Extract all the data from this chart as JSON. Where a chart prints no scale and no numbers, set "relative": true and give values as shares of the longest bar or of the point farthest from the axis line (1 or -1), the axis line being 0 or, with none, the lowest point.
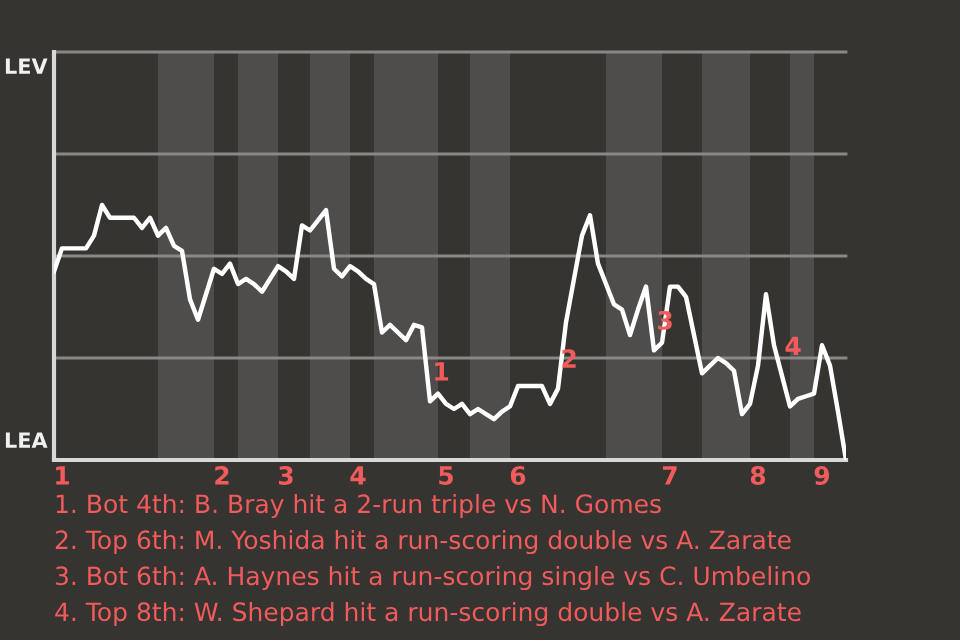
{
  "chart_data": {
    "type": "line",
    "relative": true,
    "categories": [
      null,
      "1",
      null,
      null,
      null,
      null,
      null,
      null,
      null,
      null,
      null,
      null,
      null,
      null,
      null,
      null,
      null,
      null,
      null,
      null,
      null,
      "2",
      null,
      null,
      null,
      null,
      null,
      null,
      null,
      "3",
      null,
      null,
      null,
      null,
      null,
      null,
      null,
      null,
      "4",
      null,
      null,
      null,
      null,
      null,
      null,
      null,
      null,
      null,
      null,
      "5",
      null,
      null,
      null,
      null,
      null,
      null,
      null,
      null,
      "6",
      null,
      null,
      null,
      null,
      null,
      null,
      null,
      null,
      null,
      null,
      null,
      null,
      null,
      null,
      null,
      null,
      null,
      null,
      "7",
      null,
      null,
      null,
      null,
      null,
      null,
      null,
      null,
      null,
      null,
      "8",
      null,
      null,
      null,
      null,
      null,
      null,
      null,
      "9",
      null,
      null,
      null
    ],
    "series": [
      {
        "color": "#ffffff",
        "values": [
          0.74,
          0.83,
          0.83,
          0.83,
          0.83,
          0.88,
          1.0,
          0.95,
          0.95,
          0.95,
          0.95,
          0.91,
          0.95,
          0.88,
          0.91,
          0.84,
          0.82,
          0.63,
          0.55,
          0.65,
          0.75,
          0.73,
          0.77,
          0.69,
          0.71,
          0.69,
          0.66,
          0.71,
          0.76,
          0.74,
          0.71,
          0.92,
          0.9,
          0.94,
          0.98,
          0.75,
          0.72,
          0.76,
          0.74,
          0.71,
          0.69,
          0.5,
          0.53,
          0.5,
          0.47,
          0.53,
          0.52,
          0.23,
          0.26,
          0.22,
          0.2,
          0.22,
          0.18,
          0.2,
          0.18,
          0.16,
          0.19,
          0.21,
          0.29,
          0.29,
          0.29,
          0.29,
          0.22,
          0.28,
          0.54,
          0.71,
          0.88,
          0.96,
          0.77,
          0.69,
          0.61,
          0.59,
          0.49,
          0.59,
          0.68,
          0.43,
          0.46,
          0.68,
          0.68,
          0.64,
          0.49,
          0.34,
          0.37,
          0.4,
          0.38,
          0.35,
          0.18,
          0.22,
          0.37,
          0.65,
          0.45,
          0.33,
          0.21,
          0.24,
          0.25,
          0.26,
          0.45,
          0.37,
          0.19,
          0
        ]
      }
    ],
    "ref_lines": [
      {
        "axis": "y",
        "value": 0.4,
        "color": "#8a8886"
      },
      {
        "axis": "y",
        "value": 0.8,
        "color": "#8a8886"
      },
      {
        "axis": "y",
        "value": 1.2,
        "color": "#8a8886"
      },
      {
        "axis": "y",
        "value": 1.6,
        "color": "#8a8886"
      }
    ],
    "annotations": [
      "LEV",
      "LEA",
      {
        "text": "1",
        "y": 0.23
      },
      {
        "text": "2",
        "y": 0.28
      },
      {
        "text": "3",
        "y": 0.43
      },
      {
        "text": "4",
        "y": 0.33
      },
      "1. Bot 4th: B. Bray hit a 2-run triple vs N. Gomes",
      "2. Top 6th: M. Yoshida hit a run-scoring double vs A. Zarate",
      "3. Bot 6th: A. Haynes hit a run-scoring single vs C. Umbelino",
      "4. Top 8th: W. Shepard hit a run-scoring double vs A. Zarate"
    ],
    "tick_labels": "x",
    "legend": false,
    "marker": "none",
    "line_style": "solid"
  }
}
